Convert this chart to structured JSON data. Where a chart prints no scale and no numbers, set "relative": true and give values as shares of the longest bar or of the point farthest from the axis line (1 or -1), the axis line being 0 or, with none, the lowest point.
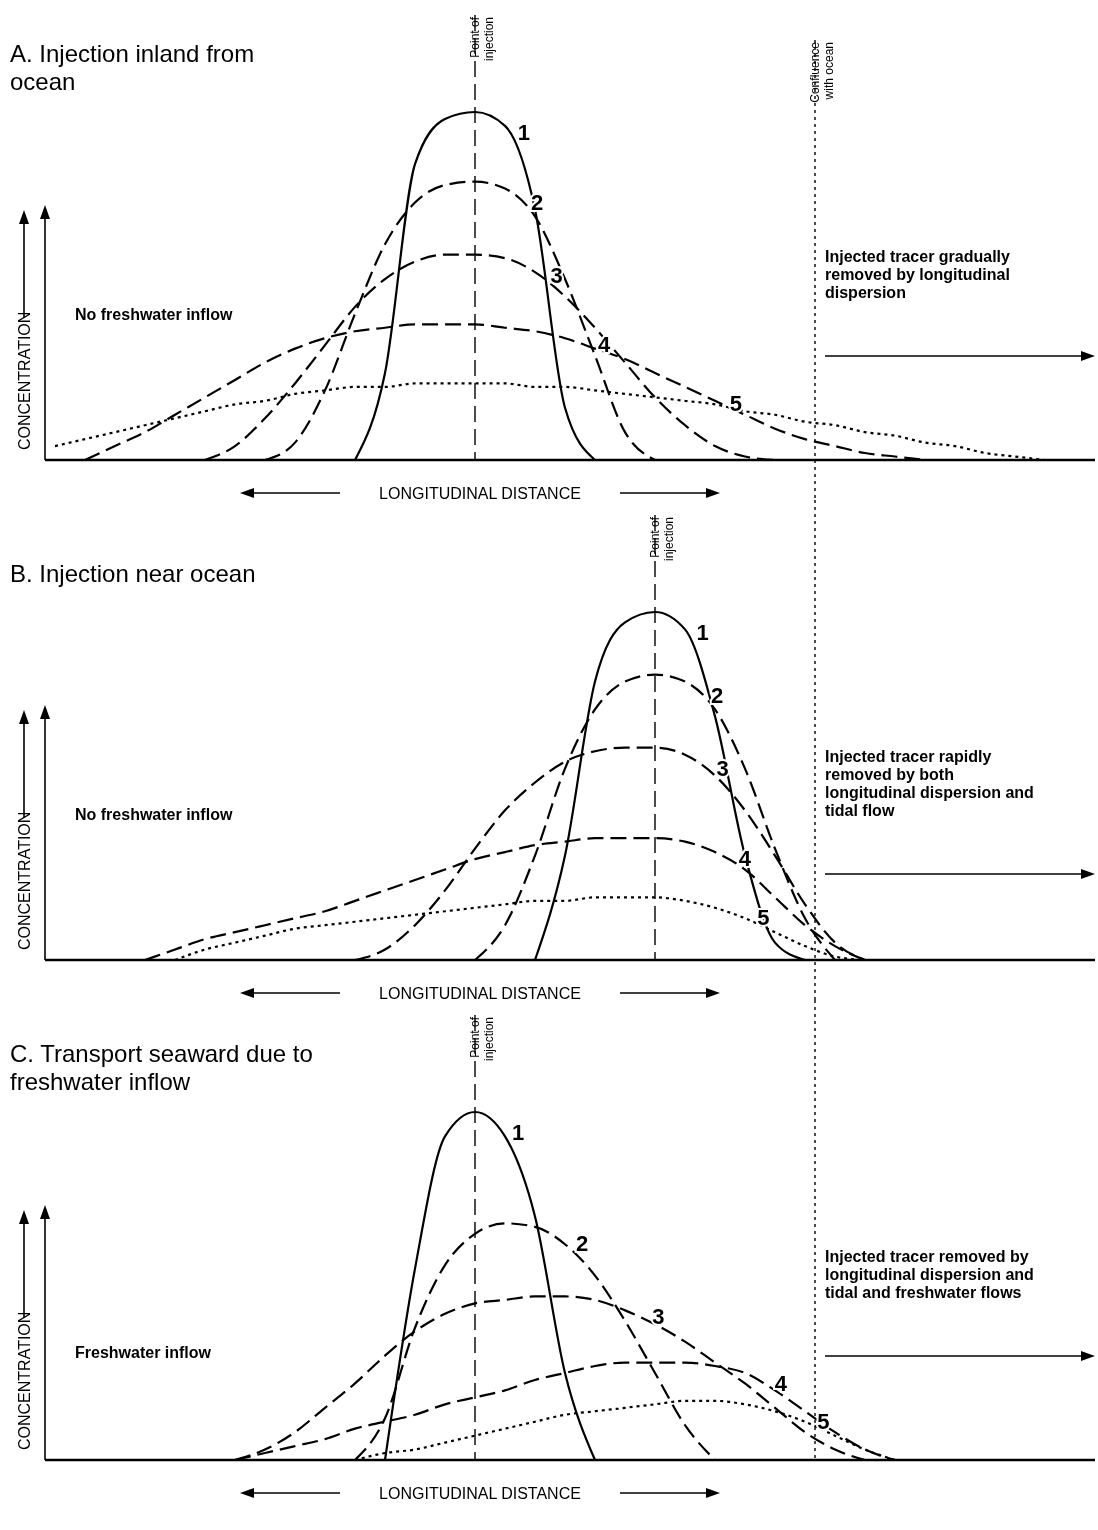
{
  "chart_data": [
    {
      "type": "line",
      "title": "A. Injection inland from ocean",
      "xlabel": "LONGITUDINAL DISTANCE",
      "ylabel": "CONCENTRATION",
      "relative": true,
      "categories": [
        null,
        null,
        null,
        null,
        null,
        null,
        null,
        null,
        null,
        null,
        null,
        null,
        null,
        null,
        null,
        null,
        null,
        null,
        null,
        null,
        null,
        null,
        null,
        null,
        null,
        null,
        null,
        null,
        null,
        null,
        null,
        null,
        null,
        null,
        null
      ],
      "annotations": [
        "No freshwater inflow",
        "Injected tracer gradually removed by longitudinal dispersion",
        "Point of injection",
        "Confluence with ocean"
      ],
      "series": [
        {
          "name": "1",
          "color": "#000000",
          "line_style": "solid",
          "values": [
            null,
            null,
            null,
            null,
            null,
            null,
            null,
            null,
            null,
            null,
            0,
            0.25,
            0.85,
            0.98,
            1,
            0.96,
            0.72,
            0.15,
            0,
            null,
            null,
            null,
            null,
            null,
            null,
            null,
            null,
            null,
            null,
            null,
            null,
            null,
            null,
            null,
            null
          ]
        },
        {
          "name": "2",
          "color": "#000000",
          "line_style": "dashed",
          "values": [
            null,
            null,
            null,
            null,
            null,
            null,
            null,
            0,
            0.05,
            0.2,
            0.42,
            0.62,
            0.74,
            0.79,
            0.8,
            0.78,
            0.7,
            0.52,
            0.3,
            0.08,
            0,
            null,
            null,
            null,
            null,
            null,
            null,
            null,
            null,
            null,
            null,
            null,
            null,
            null,
            null
          ]
        },
        {
          "name": "3",
          "color": "#000000",
          "line_style": "dashed",
          "values": [
            null,
            null,
            null,
            null,
            null,
            0,
            0.04,
            0.12,
            0.22,
            0.33,
            0.44,
            0.52,
            0.57,
            0.59,
            0.59,
            0.58,
            0.54,
            0.47,
            0.38,
            0.28,
            0.18,
            0.1,
            0.04,
            0.01,
            0,
            null,
            null,
            null,
            null,
            null,
            null,
            null,
            null,
            null,
            null
          ]
        },
        {
          "name": "4",
          "color": "#000000",
          "line_style": "dashed",
          "values": [
            null,
            0,
            0.04,
            0.08,
            0.13,
            0.18,
            0.23,
            0.28,
            0.32,
            0.35,
            0.37,
            0.38,
            0.39,
            0.39,
            0.39,
            0.38,
            0.37,
            0.35,
            0.32,
            0.29,
            0.25,
            0.21,
            0.17,
            0.13,
            0.09,
            0.06,
            0.04,
            0.02,
            0.01,
            0,
            null,
            null,
            null,
            null,
            null
          ]
        },
        {
          "name": "5",
          "color": "#000000",
          "line_style": "dotted",
          "values": [
            0.04,
            0.06,
            0.08,
            0.1,
            0.12,
            0.14,
            0.16,
            0.17,
            0.19,
            0.2,
            0.21,
            0.21,
            0.22,
            0.22,
            0.22,
            0.22,
            0.21,
            0.21,
            0.2,
            0.19,
            0.18,
            0.17,
            0.16,
            0.14,
            0.13,
            0.11,
            0.1,
            0.08,
            0.07,
            0.05,
            0.04,
            0.02,
            0.01,
            0,
            null
          ]
        }
      ]
    },
    {
      "type": "line",
      "title": "B. Injection near ocean",
      "xlabel": "LONGITUDINAL DISTANCE",
      "ylabel": "CONCENTRATION",
      "relative": true,
      "categories": [
        null,
        null,
        null,
        null,
        null,
        null,
        null,
        null,
        null,
        null,
        null,
        null,
        null,
        null,
        null,
        null,
        null,
        null,
        null,
        null,
        null,
        null,
        null,
        null,
        null,
        null,
        null,
        null,
        null,
        null,
        null,
        null,
        null,
        null,
        null
      ],
      "annotations": [
        "No freshwater inflow",
        "Injected tracer rapidly removed by both longitudinal dispersion and tidal flow",
        "Point of injection"
      ],
      "series": [
        {
          "name": "1",
          "color": "#000000",
          "line_style": "solid",
          "values": [
            null,
            null,
            null,
            null,
            null,
            null,
            null,
            null,
            null,
            null,
            null,
            null,
            null,
            null,
            null,
            null,
            0,
            0.3,
            0.8,
            0.97,
            1,
            0.95,
            0.7,
            0.3,
            0.05,
            0,
            null,
            null,
            null,
            null,
            null,
            null,
            null,
            null,
            null
          ]
        },
        {
          "name": "2",
          "color": "#000000",
          "line_style": "dashed",
          "values": [
            null,
            null,
            null,
            null,
            null,
            null,
            null,
            null,
            null,
            null,
            null,
            null,
            null,
            null,
            0,
            0.1,
            0.3,
            0.55,
            0.72,
            0.8,
            0.82,
            0.8,
            0.72,
            0.55,
            0.32,
            0.12,
            0,
            null,
            null,
            null,
            null,
            null,
            null,
            null,
            null
          ]
        },
        {
          "name": "3",
          "color": "#000000",
          "line_style": "dashed",
          "values": [
            null,
            null,
            null,
            null,
            null,
            null,
            null,
            null,
            null,
            null,
            0,
            0.03,
            0.1,
            0.2,
            0.32,
            0.43,
            0.51,
            0.57,
            0.6,
            0.61,
            0.61,
            0.59,
            0.53,
            0.43,
            0.3,
            0.16,
            0.05,
            0,
            null,
            null,
            null,
            null,
            null,
            null,
            null
          ]
        },
        {
          "name": "4",
          "color": "#000000",
          "line_style": "dashed",
          "values": [
            null,
            null,
            null,
            0,
            0.03,
            0.06,
            0.08,
            0.1,
            0.12,
            0.14,
            0.17,
            0.2,
            0.23,
            0.26,
            0.29,
            0.31,
            0.33,
            0.34,
            0.35,
            0.35,
            0.35,
            0.34,
            0.31,
            0.26,
            0.18,
            0.1,
            0.04,
            0,
            null,
            null,
            null,
            null,
            null,
            null,
            null
          ]
        },
        {
          "name": "5",
          "color": "#000000",
          "line_style": "dotted",
          "values": [
            null,
            null,
            null,
            null,
            0,
            0.03,
            0.05,
            0.07,
            0.09,
            0.1,
            0.11,
            0.12,
            0.13,
            0.14,
            0.15,
            0.16,
            0.17,
            0.17,
            0.18,
            0.18,
            0.18,
            0.17,
            0.15,
            0.12,
            0.08,
            0.04,
            0.01,
            0,
            null,
            null,
            null,
            null,
            null,
            null,
            null
          ]
        }
      ]
    },
    {
      "type": "line",
      "title": "C. Transport seaward due to freshwater inflow",
      "xlabel": "LONGITUDINAL DISTANCE",
      "ylabel": "CONCENTRATION",
      "relative": true,
      "categories": [
        null,
        null,
        null,
        null,
        null,
        null,
        null,
        null,
        null,
        null,
        null,
        null,
        null,
        null,
        null,
        null,
        null,
        null,
        null,
        null,
        null,
        null,
        null,
        null,
        null,
        null,
        null,
        null,
        null,
        null,
        null,
        null,
        null,
        null,
        null
      ],
      "annotations": [
        "Freshwater inflow",
        "Injected tracer removed by longitudinal dispersion and tidal and freshwater flows",
        "Point of injection"
      ],
      "series": [
        {
          "name": "1",
          "color": "#000000",
          "line_style": "solid",
          "values": [
            null,
            null,
            null,
            null,
            null,
            null,
            null,
            null,
            null,
            null,
            null,
            0,
            0.55,
            0.93,
            1,
            0.93,
            0.7,
            0.25,
            0,
            null,
            null,
            null,
            null,
            null,
            null,
            null,
            null,
            null,
            null,
            null,
            null,
            null,
            null,
            null,
            null
          ]
        },
        {
          "name": "2",
          "color": "#000000",
          "line_style": "dashed",
          "values": [
            null,
            null,
            null,
            null,
            null,
            null,
            null,
            null,
            null,
            null,
            0,
            0.12,
            0.38,
            0.56,
            0.65,
            0.68,
            0.67,
            0.62,
            0.53,
            0.4,
            0.25,
            0.1,
            0,
            null,
            null,
            null,
            null,
            null,
            null,
            null,
            null,
            null,
            null,
            null,
            null
          ]
        },
        {
          "name": "3",
          "color": "#000000",
          "line_style": "dashed",
          "values": [
            null,
            null,
            null,
            null,
            null,
            null,
            0,
            0.03,
            0.08,
            0.15,
            0.22,
            0.3,
            0.37,
            0.42,
            0.45,
            0.46,
            0.47,
            0.47,
            0.46,
            0.43,
            0.39,
            0.34,
            0.28,
            0.22,
            0.15,
            0.08,
            0.03,
            0,
            null,
            null,
            null,
            null,
            null,
            null,
            null
          ]
        },
        {
          "name": "4",
          "color": "#000000",
          "line_style": "dashed",
          "values": [
            null,
            null,
            null,
            null,
            null,
            null,
            0,
            0.02,
            0.04,
            0.06,
            0.09,
            0.11,
            0.13,
            0.16,
            0.18,
            0.2,
            0.23,
            0.25,
            0.27,
            0.28,
            0.28,
            0.28,
            0.27,
            0.25,
            0.2,
            0.14,
            0.08,
            0.03,
            0,
            null,
            null,
            null,
            null,
            null,
            null
          ]
        },
        {
          "name": "5",
          "color": "#000000",
          "line_style": "dotted",
          "values": [
            null,
            null,
            null,
            null,
            null,
            null,
            null,
            null,
            null,
            null,
            0,
            0.02,
            0.03,
            0.05,
            0.07,
            0.09,
            0.11,
            0.13,
            0.14,
            0.15,
            0.16,
            0.17,
            0.17,
            0.16,
            0.14,
            0.11,
            0.07,
            0.03,
            0,
            null,
            null,
            null,
            null,
            null,
            null
          ]
        }
      ]
    }
  ]
}
